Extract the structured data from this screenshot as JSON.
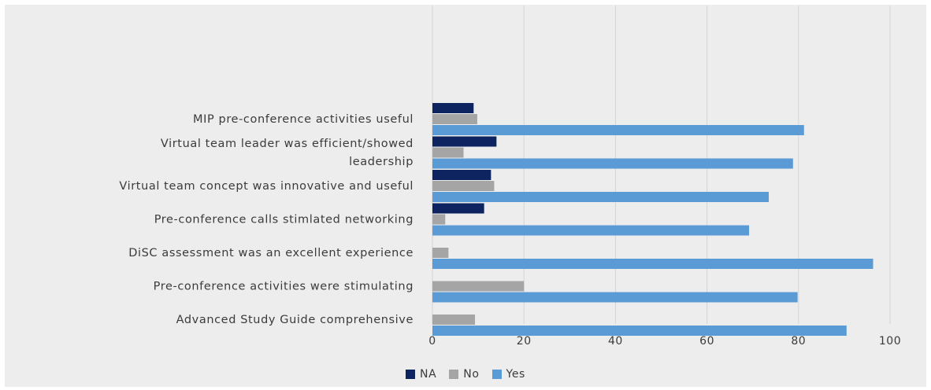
{
  "chart_data": {
    "type": "bar",
    "orientation": "horizontal",
    "categories": [
      "MIP pre-conference activities useful",
      "Virtual team leader was efficient/showed leadership",
      "Virtual team concept was innovative and useful",
      "Pre-conference calls stimlated networking",
      "DiSC assessment was an excellent experience",
      "Pre-conference activities were stimulating",
      "Advanced Study Guide comprehensive"
    ],
    "category_label_lines": [
      [
        "MIP pre-conference activities useful"
      ],
      [
        "Virtual team leader was efficient/showed",
        "leadership"
      ],
      [
        "Virtual team concept was innovative and useful"
      ],
      [
        "Pre-conference calls stimlated networking"
      ],
      [
        "DiSC assessment was an excellent experience"
      ],
      [
        "Pre-conference activities were stimulating"
      ],
      [
        "Advanced Study Guide comprehensive"
      ]
    ],
    "series": [
      {
        "name": "NA",
        "color": "#0d2461",
        "values": [
          9,
          14,
          12.8,
          11.3,
          null,
          null,
          null
        ]
      },
      {
        "name": "No",
        "color": "#a5a5a5",
        "values": [
          9.8,
          6.8,
          13.5,
          2.8,
          3.5,
          20,
          9.3
        ]
      },
      {
        "name": "Yes",
        "color": "#5b9bd5",
        "values": [
          81.2,
          78.8,
          73.5,
          69.2,
          96.3,
          79.8,
          90.5
        ]
      }
    ],
    "xlim": [
      0,
      100
    ],
    "xticks": [
      0,
      20,
      40,
      60,
      80,
      100
    ],
    "xtick_labels": [
      "0",
      "20",
      "40",
      "60",
      "80",
      "100"
    ],
    "grid": "vertical",
    "legend": "bottom",
    "title": "",
    "xlabel": "",
    "ylabel": ""
  }
}
